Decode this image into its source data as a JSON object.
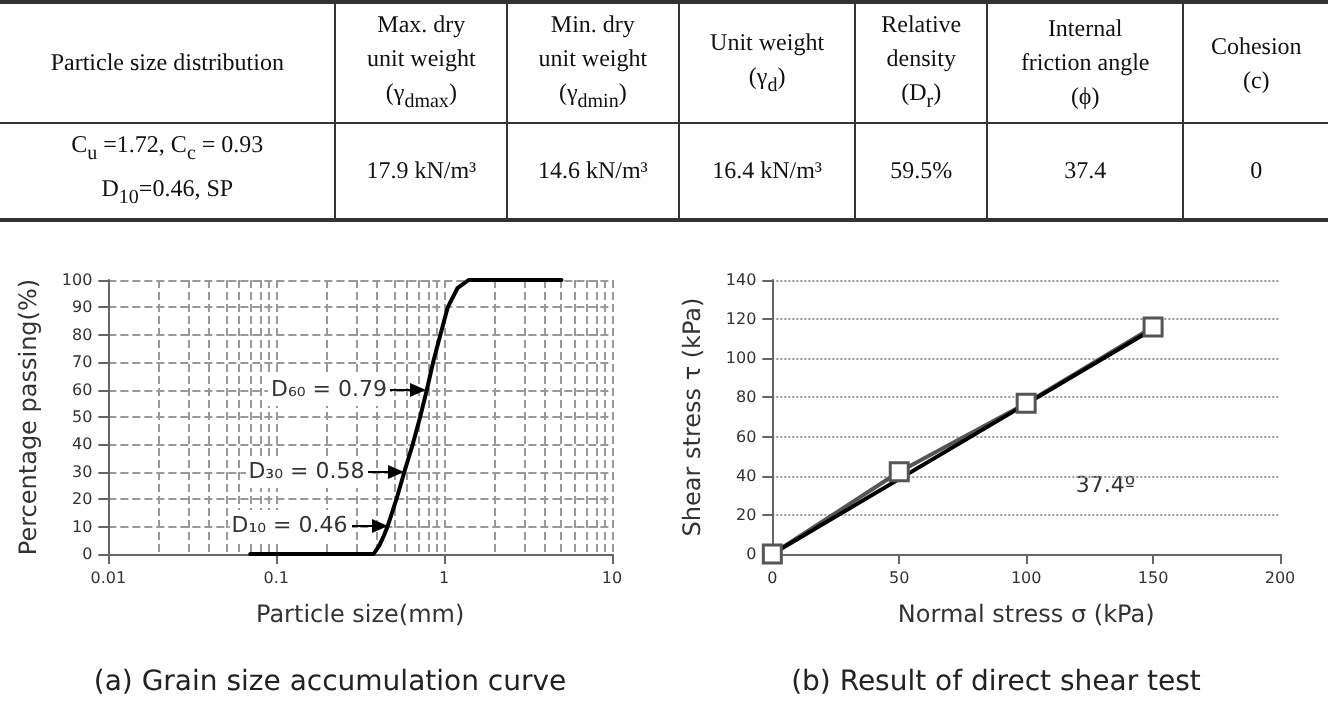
{
  "chart_data": [
    {
      "type": "other",
      "categories": [
        "Particle size distribution",
        "Max. dry\nunit weight\n(γ$_{dmax}$)",
        "Min. dry\nunit weight\n(γ$_{dmin}$)",
        "Unit weight\n(γ$_{d}$)",
        "Relative\ndensity\n(D$_{r}$)",
        "Internal\nfriction angle\n(ϕ)",
        "Cohesion\n(c)"
      ],
      "annotations": [
        "C$_{u}$ =1.72, C$_{c}$ = 0.93\nD$_{10}$=0.46, SP",
        "17.9 kN/m³",
        "14.6 kN/m³",
        "16.4 kN/m³",
        "59.5%",
        "37.4",
        "0"
      ]
    },
    {
      "type": "line",
      "title": "(a) Grain size accumulation curve",
      "xlabel": "Particle size(mm)",
      "ylabel": "Percentage passing(%)",
      "log": "x",
      "xlim": [
        0.01,
        10
      ],
      "xticks": [
        0.01,
        0.1,
        1,
        10
      ],
      "ylim": [
        0,
        100
      ],
      "yticks": [
        0,
        10,
        20,
        30,
        40,
        50,
        60,
        70,
        80,
        90,
        100
      ],
      "grid": true,
      "marker": "none",
      "series": [
        {
          "color": "#000000",
          "x": [
            0.07,
            0.1,
            0.17,
            0.3,
            0.38,
            0.41,
            0.44,
            0.46,
            0.52,
            0.58,
            0.65,
            0.72,
            0.79,
            0.86,
            0.95,
            1.05,
            1.2,
            1.4,
            2,
            5
          ],
          "values": [
            0,
            0,
            0,
            0,
            0,
            3,
            7,
            10,
            20,
            30,
            40,
            50,
            60,
            70,
            80,
            90,
            97,
            100,
            100,
            100
          ]
        }
      ],
      "annotations": [
        {
          "text": "D₆₀ = 0.79",
          "x": 0.79,
          "y": 60
        },
        {
          "text": "D₃₀ = 0.58",
          "x": 0.58,
          "y": 30
        },
        {
          "text": "D₁₀ = 0.46",
          "x": 0.46,
          "y": 10
        }
      ]
    },
    {
      "type": "line",
      "title": "(b) Result of direct shear test",
      "xlabel": "Normal stress σ (kPa)",
      "ylabel": "Shear stress τ (kPa)",
      "xlim": [
        0,
        200
      ],
      "xticks": [
        0,
        50,
        100,
        150,
        200
      ],
      "ylim": [
        0,
        140
      ],
      "yticks": [
        0,
        20,
        40,
        60,
        80,
        100,
        120,
        140
      ],
      "grid": "y",
      "marker": "square",
      "series": [
        {
          "color": "#555555",
          "x": [
            0,
            50,
            100,
            150
          ],
          "values": [
            0,
            42,
            77,
            116
          ]
        },
        {
          "color": "#000000",
          "x": [
            0,
            150
          ],
          "values": [
            0,
            115
          ],
          "marker": "none"
        }
      ],
      "annotations": [
        "37.4º"
      ]
    }
  ]
}
